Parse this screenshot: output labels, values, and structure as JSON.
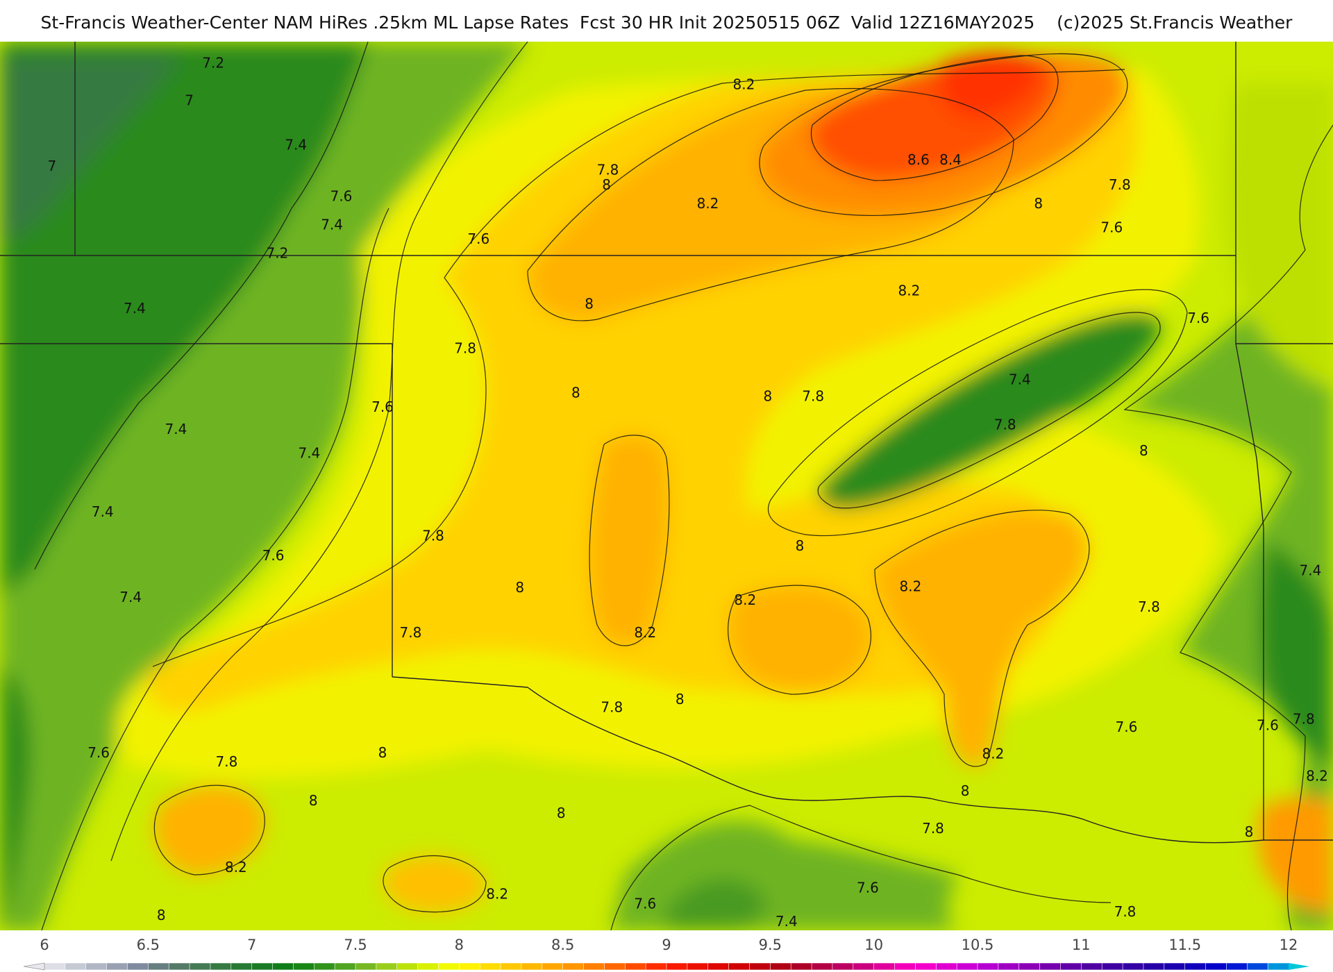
{
  "title": "St-Francis Weather-Center NAM HiRes .25km ML Lapse Rates  Fcst 30 HR Init 20250515 06Z  Valid 12Z16MAY2025    (c)2025 St.Francis Weather",
  "map": {
    "colors": {
      "green_dark": "#1e7a1a",
      "green": "#4e9e2a",
      "green_light": "#8cc226",
      "yellow_green": "#c8e600",
      "yellow": "#f2f200",
      "gold": "#ffd400",
      "orange_light": "#ffb000",
      "orange": "#ff8c00",
      "red_orange": "#ff5a00",
      "red": "#ff2a00"
    },
    "contour_labels": [
      {
        "text": "7.2",
        "lon": 0.16,
        "lat": 0.024
      },
      {
        "text": "7",
        "lon": 0.142,
        "lat": 0.066
      },
      {
        "text": "7.4",
        "lon": 0.222,
        "lat": 0.116
      },
      {
        "text": "7",
        "lon": 0.039,
        "lat": 0.14
      },
      {
        "text": "7.6",
        "lon": 0.256,
        "lat": 0.174
      },
      {
        "text": "7.4",
        "lon": 0.249,
        "lat": 0.206
      },
      {
        "text": "7.2",
        "lon": 0.208,
        "lat": 0.238
      },
      {
        "text": "7.4",
        "lon": 0.101,
        "lat": 0.3
      },
      {
        "text": "8.2",
        "lon": 0.558,
        "lat": 0.048
      },
      {
        "text": "7.8",
        "lon": 0.456,
        "lat": 0.144
      },
      {
        "text": "8",
        "lon": 0.455,
        "lat": 0.161
      },
      {
        "text": "8.2",
        "lon": 0.531,
        "lat": 0.182
      },
      {
        "text": "8.6",
        "lon": 0.689,
        "lat": 0.133
      },
      {
        "text": "8.4",
        "lon": 0.713,
        "lat": 0.133
      },
      {
        "text": "7.6",
        "lon": 0.359,
        "lat": 0.222
      },
      {
        "text": "8",
        "lon": 0.779,
        "lat": 0.182
      },
      {
        "text": "7.8",
        "lon": 0.84,
        "lat": 0.161
      },
      {
        "text": "7.6",
        "lon": 0.834,
        "lat": 0.209
      },
      {
        "text": "8",
        "lon": 0.442,
        "lat": 0.295
      },
      {
        "text": "8.2",
        "lon": 0.682,
        "lat": 0.28
      },
      {
        "text": "7.6",
        "lon": 0.899,
        "lat": 0.311
      },
      {
        "text": "7.8",
        "lon": 0.349,
        "lat": 0.345
      },
      {
        "text": "8",
        "lon": 0.432,
        "lat": 0.395
      },
      {
        "text": "8",
        "lon": 0.576,
        "lat": 0.399
      },
      {
        "text": "7.8",
        "lon": 0.61,
        "lat": 0.399
      },
      {
        "text": "7.4",
        "lon": 0.765,
        "lat": 0.38
      },
      {
        "text": "7.6",
        "lon": 0.287,
        "lat": 0.411
      },
      {
        "text": "7.4",
        "lon": 0.132,
        "lat": 0.436
      },
      {
        "text": "7.4",
        "lon": 0.232,
        "lat": 0.463
      },
      {
        "text": "7.8",
        "lon": 0.754,
        "lat": 0.431
      },
      {
        "text": "8",
        "lon": 0.858,
        "lat": 0.46
      },
      {
        "text": "7.4",
        "lon": 0.077,
        "lat": 0.529
      },
      {
        "text": "7.8",
        "lon": 0.325,
        "lat": 0.556
      },
      {
        "text": "8",
        "lon": 0.6,
        "lat": 0.567
      },
      {
        "text": "7.6",
        "lon": 0.205,
        "lat": 0.578
      },
      {
        "text": "7.4",
        "lon": 0.983,
        "lat": 0.595
      },
      {
        "text": "8",
        "lon": 0.39,
        "lat": 0.614
      },
      {
        "text": "8.2",
        "lon": 0.683,
        "lat": 0.613
      },
      {
        "text": "7.4",
        "lon": 0.098,
        "lat": 0.625
      },
      {
        "text": "8.2",
        "lon": 0.559,
        "lat": 0.628
      },
      {
        "text": "7.8",
        "lon": 0.862,
        "lat": 0.636
      },
      {
        "text": "7.8",
        "lon": 0.308,
        "lat": 0.665
      },
      {
        "text": "8.2",
        "lon": 0.484,
        "lat": 0.665
      },
      {
        "text": "8",
        "lon": 0.51,
        "lat": 0.74
      },
      {
        "text": "7.8",
        "lon": 0.459,
        "lat": 0.749
      },
      {
        "text": "7.6",
        "lon": 0.845,
        "lat": 0.771
      },
      {
        "text": "7.6",
        "lon": 0.951,
        "lat": 0.769
      },
      {
        "text": "7.8",
        "lon": 0.978,
        "lat": 0.762
      },
      {
        "text": "7.6",
        "lon": 0.074,
        "lat": 0.8
      },
      {
        "text": "7.8",
        "lon": 0.17,
        "lat": 0.81
      },
      {
        "text": "8",
        "lon": 0.287,
        "lat": 0.8
      },
      {
        "text": "8.2",
        "lon": 0.745,
        "lat": 0.801
      },
      {
        "text": "8.2",
        "lon": 0.988,
        "lat": 0.826
      },
      {
        "text": "8",
        "lon": 0.235,
        "lat": 0.854
      },
      {
        "text": "8",
        "lon": 0.724,
        "lat": 0.843
      },
      {
        "text": "8",
        "lon": 0.421,
        "lat": 0.868
      },
      {
        "text": "7.8",
        "lon": 0.7,
        "lat": 0.885
      },
      {
        "text": "8",
        "lon": 0.937,
        "lat": 0.889
      },
      {
        "text": "8.2",
        "lon": 0.177,
        "lat": 0.929
      },
      {
        "text": "8.2",
        "lon": 0.373,
        "lat": 0.959
      },
      {
        "text": "7.6",
        "lon": 0.651,
        "lat": 0.952
      },
      {
        "text": "7.6",
        "lon": 0.484,
        "lat": 0.97
      },
      {
        "text": "8",
        "lon": 0.121,
        "lat": 0.983
      },
      {
        "text": "7.4",
        "lon": 0.59,
        "lat": 0.99
      },
      {
        "text": "7.8",
        "lon": 0.844,
        "lat": 0.979
      }
    ]
  },
  "colorbar": {
    "ticks": [
      "6",
      "6.5",
      "7",
      "7.5",
      "8",
      "8.5",
      "9",
      "9.5",
      "10",
      "10.5",
      "11",
      "11.5",
      "12"
    ],
    "min": 6,
    "max": 12,
    "step": 0.1,
    "stops": [
      [
        6.0,
        "#e8e8ee"
      ],
      [
        6.25,
        "#b0b6c4"
      ],
      [
        6.45,
        "#7f8aa0"
      ],
      [
        6.6,
        "#5d7a72"
      ],
      [
        6.8,
        "#3c7a4a"
      ],
      [
        7.0,
        "#1f7a2a"
      ],
      [
        7.2,
        "#0c7e12"
      ],
      [
        7.4,
        "#3c9a20"
      ],
      [
        7.6,
        "#88c224"
      ],
      [
        7.8,
        "#ccec00"
      ],
      [
        8.0,
        "#ffff00"
      ],
      [
        8.2,
        "#ffd000"
      ],
      [
        8.4,
        "#ffb000"
      ],
      [
        8.6,
        "#ff8c00"
      ],
      [
        8.8,
        "#ff5a00"
      ],
      [
        9.0,
        "#ff1e00"
      ],
      [
        9.3,
        "#d80000"
      ],
      [
        9.6,
        "#a80018"
      ],
      [
        9.9,
        "#c00070"
      ],
      [
        10.2,
        "#ff00c8"
      ],
      [
        10.5,
        "#c000d8"
      ],
      [
        10.8,
        "#8000b0"
      ],
      [
        11.1,
        "#4400a0"
      ],
      [
        11.4,
        "#2000a8"
      ],
      [
        11.7,
        "#0000d0"
      ],
      [
        11.9,
        "#0060e0"
      ],
      [
        12.0,
        "#00c8d8"
      ]
    ]
  }
}
